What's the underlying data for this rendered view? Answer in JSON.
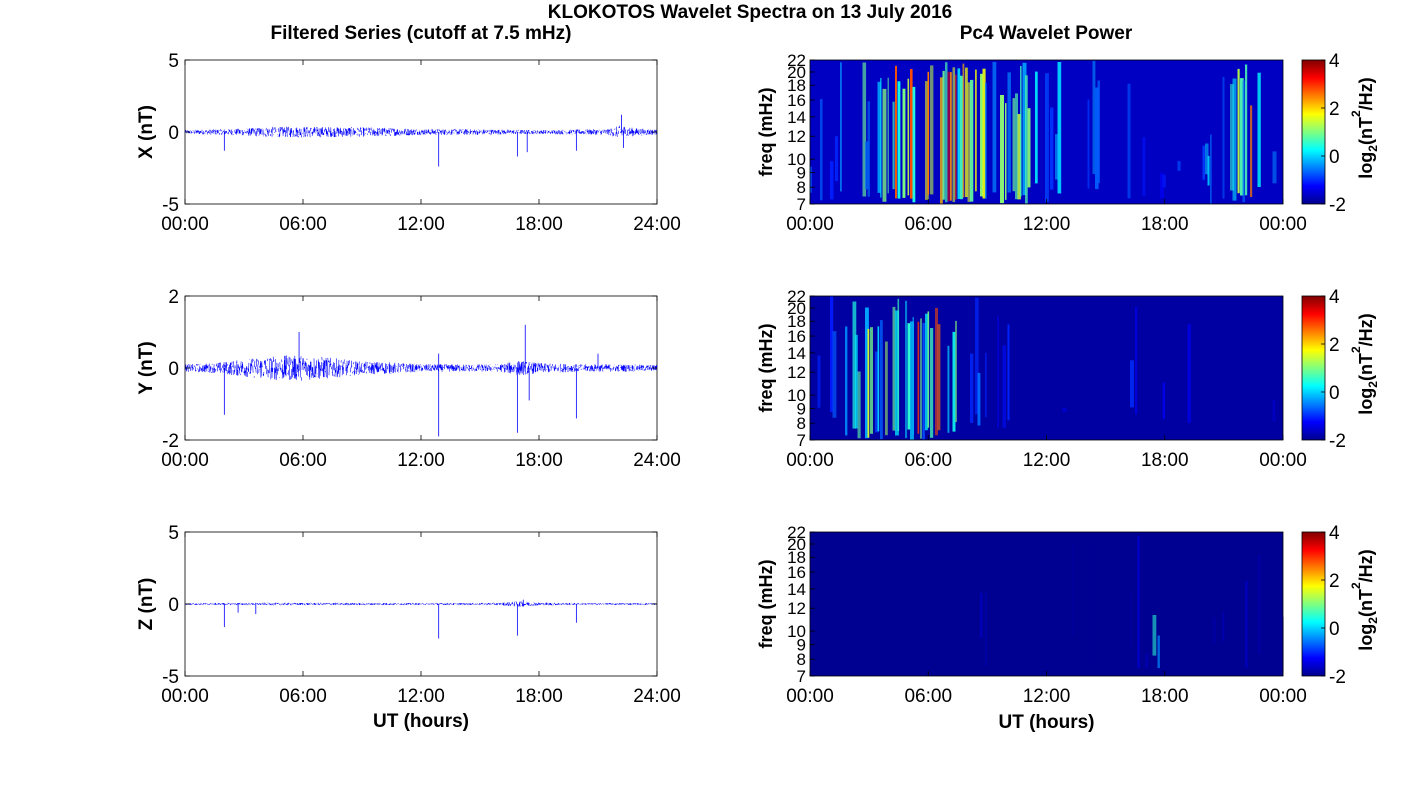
{
  "figure": {
    "title": "KLOKOTOS Wavelet Spectra on 13 July 2016",
    "left_title": "Filtered Series (cutoff at 7.5 mHz)",
    "right_title": "Pc4 Wavelet Power",
    "xlabel": "UT (hours)",
    "freq_label": "freq (mHz)",
    "colorbar_label_base": "log",
    "colorbar_label_sub": "2",
    "colorbar_label_open": "(nT",
    "colorbar_label_sup": "2",
    "colorbar_label_close": "/Hz)"
  },
  "chart_data": [
    {
      "type": "line",
      "name": "X",
      "ylabel": "X (nT)",
      "ylim": [
        -5,
        5
      ],
      "yticks": [
        "5",
        "0",
        "-5"
      ],
      "xlim": [
        0,
        24
      ],
      "xticks": [
        "00:00",
        "06:00",
        "12:00",
        "18:00",
        "24:00"
      ],
      "color": "#0000ff",
      "grid": false,
      "envelope": {
        "x": [
          0,
          2,
          3,
          4,
          6,
          8,
          10,
          12,
          14,
          16,
          18,
          20,
          21.5,
          22.2,
          22.8,
          24
        ],
        "amplitude": [
          0.2,
          0.3,
          0.35,
          0.5,
          0.55,
          0.5,
          0.45,
          0.3,
          0.3,
          0.25,
          0.2,
          0.25,
          0.3,
          0.7,
          0.4,
          0.25
        ]
      },
      "spikes": [
        {
          "x": 2.0,
          "y": -1.3
        },
        {
          "x": 12.9,
          "y": -2.4
        },
        {
          "x": 16.9,
          "y": -1.7
        },
        {
          "x": 17.4,
          "y": -1.4
        },
        {
          "x": 19.9,
          "y": -1.3
        },
        {
          "x": 22.2,
          "y": 1.2
        },
        {
          "x": 22.3,
          "y": -1.1
        }
      ]
    },
    {
      "type": "line",
      "name": "Y",
      "ylabel": "Y (nT)",
      "ylim": [
        -2,
        2
      ],
      "yticks": [
        "2",
        "0",
        "-2"
      ],
      "xlim": [
        0,
        24
      ],
      "xticks": [
        "00:00",
        "06:00",
        "12:00",
        "18:00",
        "24:00"
      ],
      "color": "#0000ff",
      "grid": false,
      "envelope": {
        "x": [
          0,
          1.5,
          3,
          4,
          5,
          6,
          7,
          8,
          9,
          10,
          11,
          12,
          14,
          16,
          17,
          18,
          20,
          22,
          24
        ],
        "amplitude": [
          0.15,
          0.2,
          0.35,
          0.45,
          0.5,
          0.5,
          0.45,
          0.35,
          0.25,
          0.25,
          0.2,
          0.15,
          0.15,
          0.15,
          0.3,
          0.2,
          0.15,
          0.15,
          0.12
        ]
      },
      "spikes": [
        {
          "x": 2.0,
          "y": -1.3
        },
        {
          "x": 5.8,
          "y": 1.0
        },
        {
          "x": 12.9,
          "y": -1.9
        },
        {
          "x": 12.9,
          "y": 0.4
        },
        {
          "x": 16.9,
          "y": -1.8
        },
        {
          "x": 17.3,
          "y": 1.2
        },
        {
          "x": 17.5,
          "y": -0.9
        },
        {
          "x": 19.9,
          "y": -1.4
        },
        {
          "x": 21.0,
          "y": 0.4
        }
      ]
    },
    {
      "type": "line",
      "name": "Z",
      "ylabel": "Z (nT)",
      "ylim": [
        -5,
        5
      ],
      "yticks": [
        "5",
        "0",
        "-5"
      ],
      "xlim": [
        0,
        24
      ],
      "xticks": [
        "00:00",
        "06:00",
        "12:00",
        "18:00",
        "24:00"
      ],
      "xlabel": "UT (hours)",
      "color": "#0000ff",
      "grid": false,
      "envelope": {
        "x": [
          0,
          4,
          6,
          8,
          12,
          16,
          17,
          18,
          20,
          24
        ],
        "amplitude": [
          0.1,
          0.12,
          0.12,
          0.12,
          0.1,
          0.12,
          0.3,
          0.15,
          0.1,
          0.1
        ]
      },
      "spikes": [
        {
          "x": 2.0,
          "y": -1.6
        },
        {
          "x": 2.7,
          "y": -0.6
        },
        {
          "x": 3.6,
          "y": -0.7
        },
        {
          "x": 12.9,
          "y": -2.4
        },
        {
          "x": 16.9,
          "y": -2.2
        },
        {
          "x": 17.2,
          "y": 0.3
        },
        {
          "x": 19.9,
          "y": -1.3
        }
      ]
    },
    {
      "type": "heatmap",
      "name": "X wavelet",
      "ylabel": "freq (mHz)",
      "yticks": [
        "22",
        "20",
        "18",
        "16",
        "14",
        "12",
        "10",
        "9",
        "8",
        "7"
      ],
      "xticks": [
        "00:00",
        "06:00",
        "12:00",
        "18:00",
        "00:00"
      ],
      "xlim": [
        0,
        24
      ],
      "ylim": [
        7,
        22
      ],
      "colorbar": {
        "range": [
          -2,
          4
        ],
        "ticks": [
          "4",
          "2",
          "0",
          "-2"
        ]
      },
      "base_level": -1.6,
      "activity": {
        "x": [
          0,
          1,
          2,
          3,
          4,
          5,
          6,
          7,
          8,
          9,
          10,
          11,
          12,
          13,
          14,
          15,
          16,
          17,
          18,
          19,
          20,
          21,
          22,
          23,
          24
        ],
        "level": [
          0.2,
          0.25,
          0.3,
          0.45,
          0.6,
          0.8,
          0.75,
          0.9,
          0.75,
          0.6,
          0.65,
          0.55,
          0.35,
          0.25,
          0.3,
          0.2,
          0.15,
          0.15,
          0.15,
          0.2,
          0.3,
          0.25,
          0.8,
          0.3,
          0.2
        ]
      }
    },
    {
      "type": "heatmap",
      "name": "Y wavelet",
      "ylabel": "freq (mHz)",
      "yticks": [
        "22",
        "20",
        "18",
        "16",
        "14",
        "12",
        "10",
        "9",
        "8",
        "7"
      ],
      "xticks": [
        "00:00",
        "06:00",
        "12:00",
        "18:00",
        "00:00"
      ],
      "xlim": [
        0,
        24
      ],
      "ylim": [
        7,
        22
      ],
      "colorbar": {
        "range": [
          -2,
          4
        ],
        "ticks": [
          "4",
          "2",
          "0",
          "-2"
        ]
      },
      "base_level": -1.8,
      "activity": {
        "x": [
          0,
          1,
          2,
          3,
          4,
          5,
          6,
          7,
          8,
          9,
          10,
          11,
          12,
          13,
          14,
          15,
          16,
          17,
          18,
          19,
          20,
          21,
          22,
          23,
          24
        ],
        "level": [
          0.2,
          0.3,
          0.4,
          0.55,
          0.7,
          0.75,
          0.7,
          0.65,
          0.35,
          0.25,
          0.2,
          0.15,
          0.1,
          0.1,
          0.1,
          0.1,
          0.1,
          0.45,
          0.1,
          0.1,
          0.12,
          0.15,
          0.15,
          0.05,
          0.05
        ]
      }
    },
    {
      "type": "heatmap",
      "name": "Z wavelet",
      "ylabel": "freq (mHz)",
      "yticks": [
        "22",
        "20",
        "18",
        "16",
        "14",
        "12",
        "10",
        "9",
        "8",
        "7"
      ],
      "xticks": [
        "00:00",
        "06:00",
        "12:00",
        "18:00",
        "00:00"
      ],
      "xlabel": "UT (hours)",
      "xlim": [
        0,
        24
      ],
      "ylim": [
        7,
        22
      ],
      "colorbar": {
        "range": [
          -2,
          4
        ],
        "ticks": [
          "4",
          "2",
          "0",
          "-2"
        ]
      },
      "base_level": -1.9,
      "activity": {
        "x": [
          0,
          2,
          4,
          6,
          8,
          9,
          10,
          12,
          14,
          16,
          17,
          17.2,
          18,
          20,
          21.8,
          22,
          24
        ],
        "level": [
          0.02,
          0.02,
          0.03,
          0.03,
          0.03,
          0.08,
          0.02,
          0.02,
          0.02,
          0.02,
          0.1,
          0.5,
          0.03,
          0.02,
          0.1,
          0.05,
          0.02
        ]
      }
    }
  ]
}
